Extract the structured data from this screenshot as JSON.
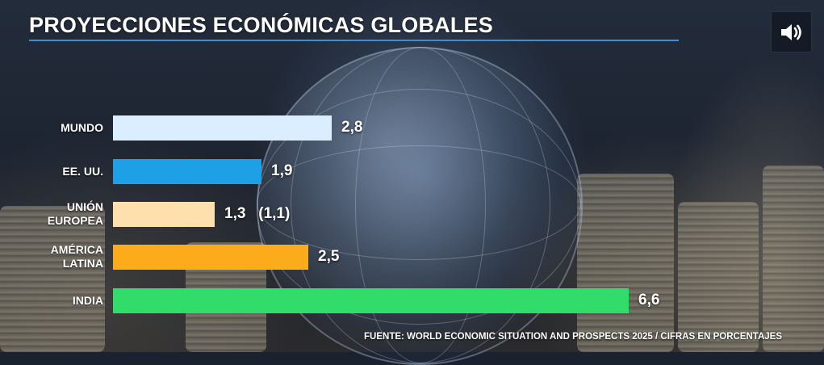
{
  "title": "PROYECCIONES ECONÓMICAS GLOBALES",
  "source": "FUENTE: WORLD ECONOMIC SITUATION AND PROSPECTS 2025 / CIFRAS EN PORCENTAJES",
  "sound_icon": "speaker-icon",
  "chart_data": {
    "type": "bar",
    "orientation": "horizontal",
    "title": "PROYECCIONES ECONÓMICAS GLOBALES",
    "categories": [
      "MUNDO",
      "EE. UU.",
      "UNIÓN\nEUROPEA",
      "AMÉRICA\nLATINA",
      "INDIA"
    ],
    "values": [
      2.8,
      1.9,
      1.3,
      2.5,
      6.6
    ],
    "labels": [
      "2,8",
      "1,9",
      "1,3   (1,1)",
      "2,5",
      "6,6"
    ],
    "colors": [
      "#dbeeff",
      "#1ea0e6",
      "#fde0ae",
      "#fcab1a",
      "#31dc6b"
    ],
    "xlim": [
      0,
      6.6
    ],
    "grid": false,
    "legend": "none"
  }
}
